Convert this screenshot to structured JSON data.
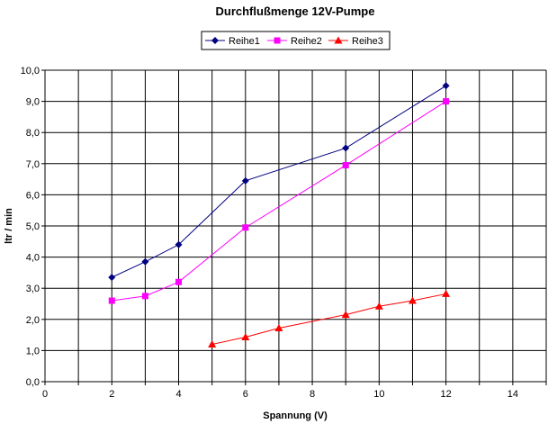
{
  "chart_data": {
    "type": "line",
    "title": "Durchflußmenge 12V-Pumpe",
    "xlabel": "Spannung (V)",
    "ylabel": "ltr / min",
    "xlim": [
      0,
      15
    ],
    "ylim": [
      0,
      10
    ],
    "x_ticks": [
      "0",
      "2",
      "4",
      "6",
      "8",
      "10",
      "12",
      "14"
    ],
    "x_tick_values": [
      0,
      2,
      4,
      6,
      8,
      10,
      12,
      14
    ],
    "y_ticks": [
      "0,0",
      "1,0",
      "2,0",
      "3,0",
      "4,0",
      "5,0",
      "6,0",
      "7,0",
      "8,0",
      "9,0",
      "10,0"
    ],
    "y_tick_values": [
      0,
      1,
      2,
      3,
      4,
      5,
      6,
      7,
      8,
      9,
      10
    ],
    "grid": true,
    "legend_position": "top-center",
    "series": [
      {
        "name": "Reihe1",
        "color": "#000080",
        "marker": "diamond",
        "x": [
          2,
          3,
          4,
          6,
          9,
          12
        ],
        "y": [
          3.35,
          3.85,
          4.4,
          6.45,
          7.5,
          9.5
        ]
      },
      {
        "name": "Reihe2",
        "color": "#ff00ff",
        "marker": "square",
        "x": [
          2,
          3,
          4,
          6,
          9,
          12
        ],
        "y": [
          2.6,
          2.75,
          3.2,
          4.95,
          6.95,
          9.0
        ]
      },
      {
        "name": "Reihe3",
        "color": "#ff0000",
        "marker": "triangle",
        "x": [
          5,
          6,
          7,
          9,
          10,
          11,
          12
        ],
        "y": [
          1.2,
          1.43,
          1.72,
          2.15,
          2.42,
          2.6,
          2.82
        ]
      }
    ]
  }
}
